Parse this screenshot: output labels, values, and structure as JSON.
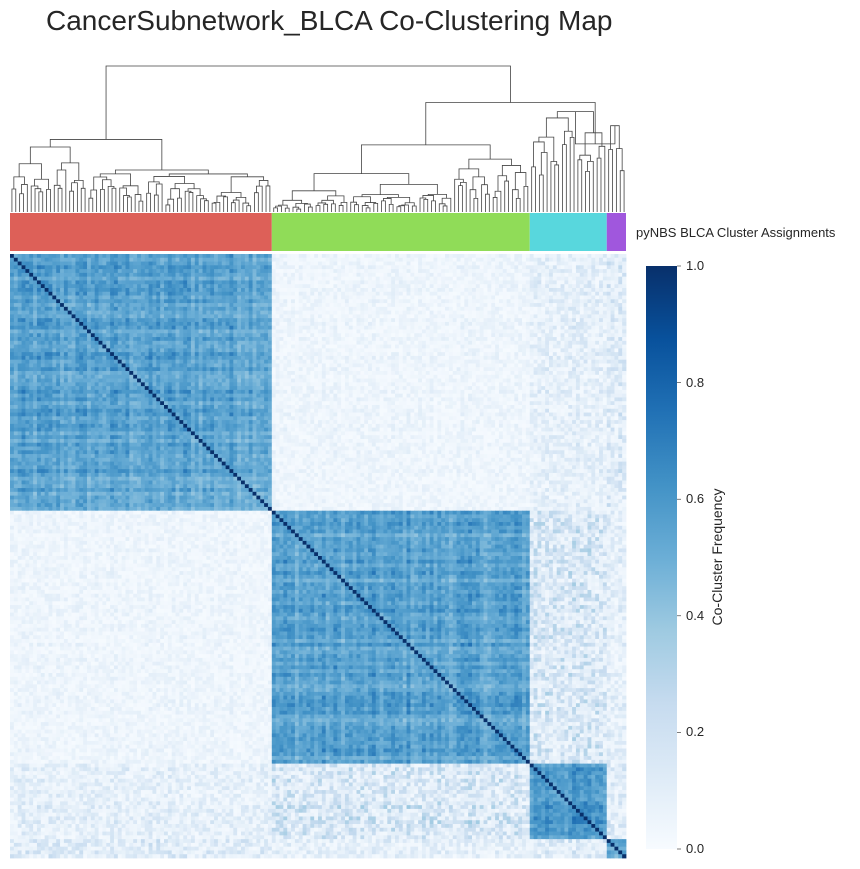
{
  "chart_data": {
    "type": "heatmap",
    "title": "CancerSubnetwork_BLCA Co-Clustering Map",
    "row_colors_label": "pyNBS BLCA Cluster Assignments",
    "colorbar": {
      "label": "Co-Cluster Frequency",
      "ticks": [
        "0.0",
        "0.2",
        "0.4",
        "0.6",
        "0.8",
        "1.0"
      ],
      "range": [
        0.0,
        1.0
      ],
      "colormap": "Blues"
    },
    "clusters": [
      {
        "fraction": 0.422,
        "color": "#dd6058",
        "within_mean": 0.55
      },
      {
        "fraction": 0.416,
        "color": "#90dc58",
        "within_mean": 0.55
      },
      {
        "fraction": 0.125,
        "color": "#58d7dd",
        "within_mean": 0.62
      },
      {
        "fraction": 0.037,
        "color": "#a057dd",
        "within_mean": 0.55
      }
    ],
    "dendrogram": true,
    "grid": false
  }
}
